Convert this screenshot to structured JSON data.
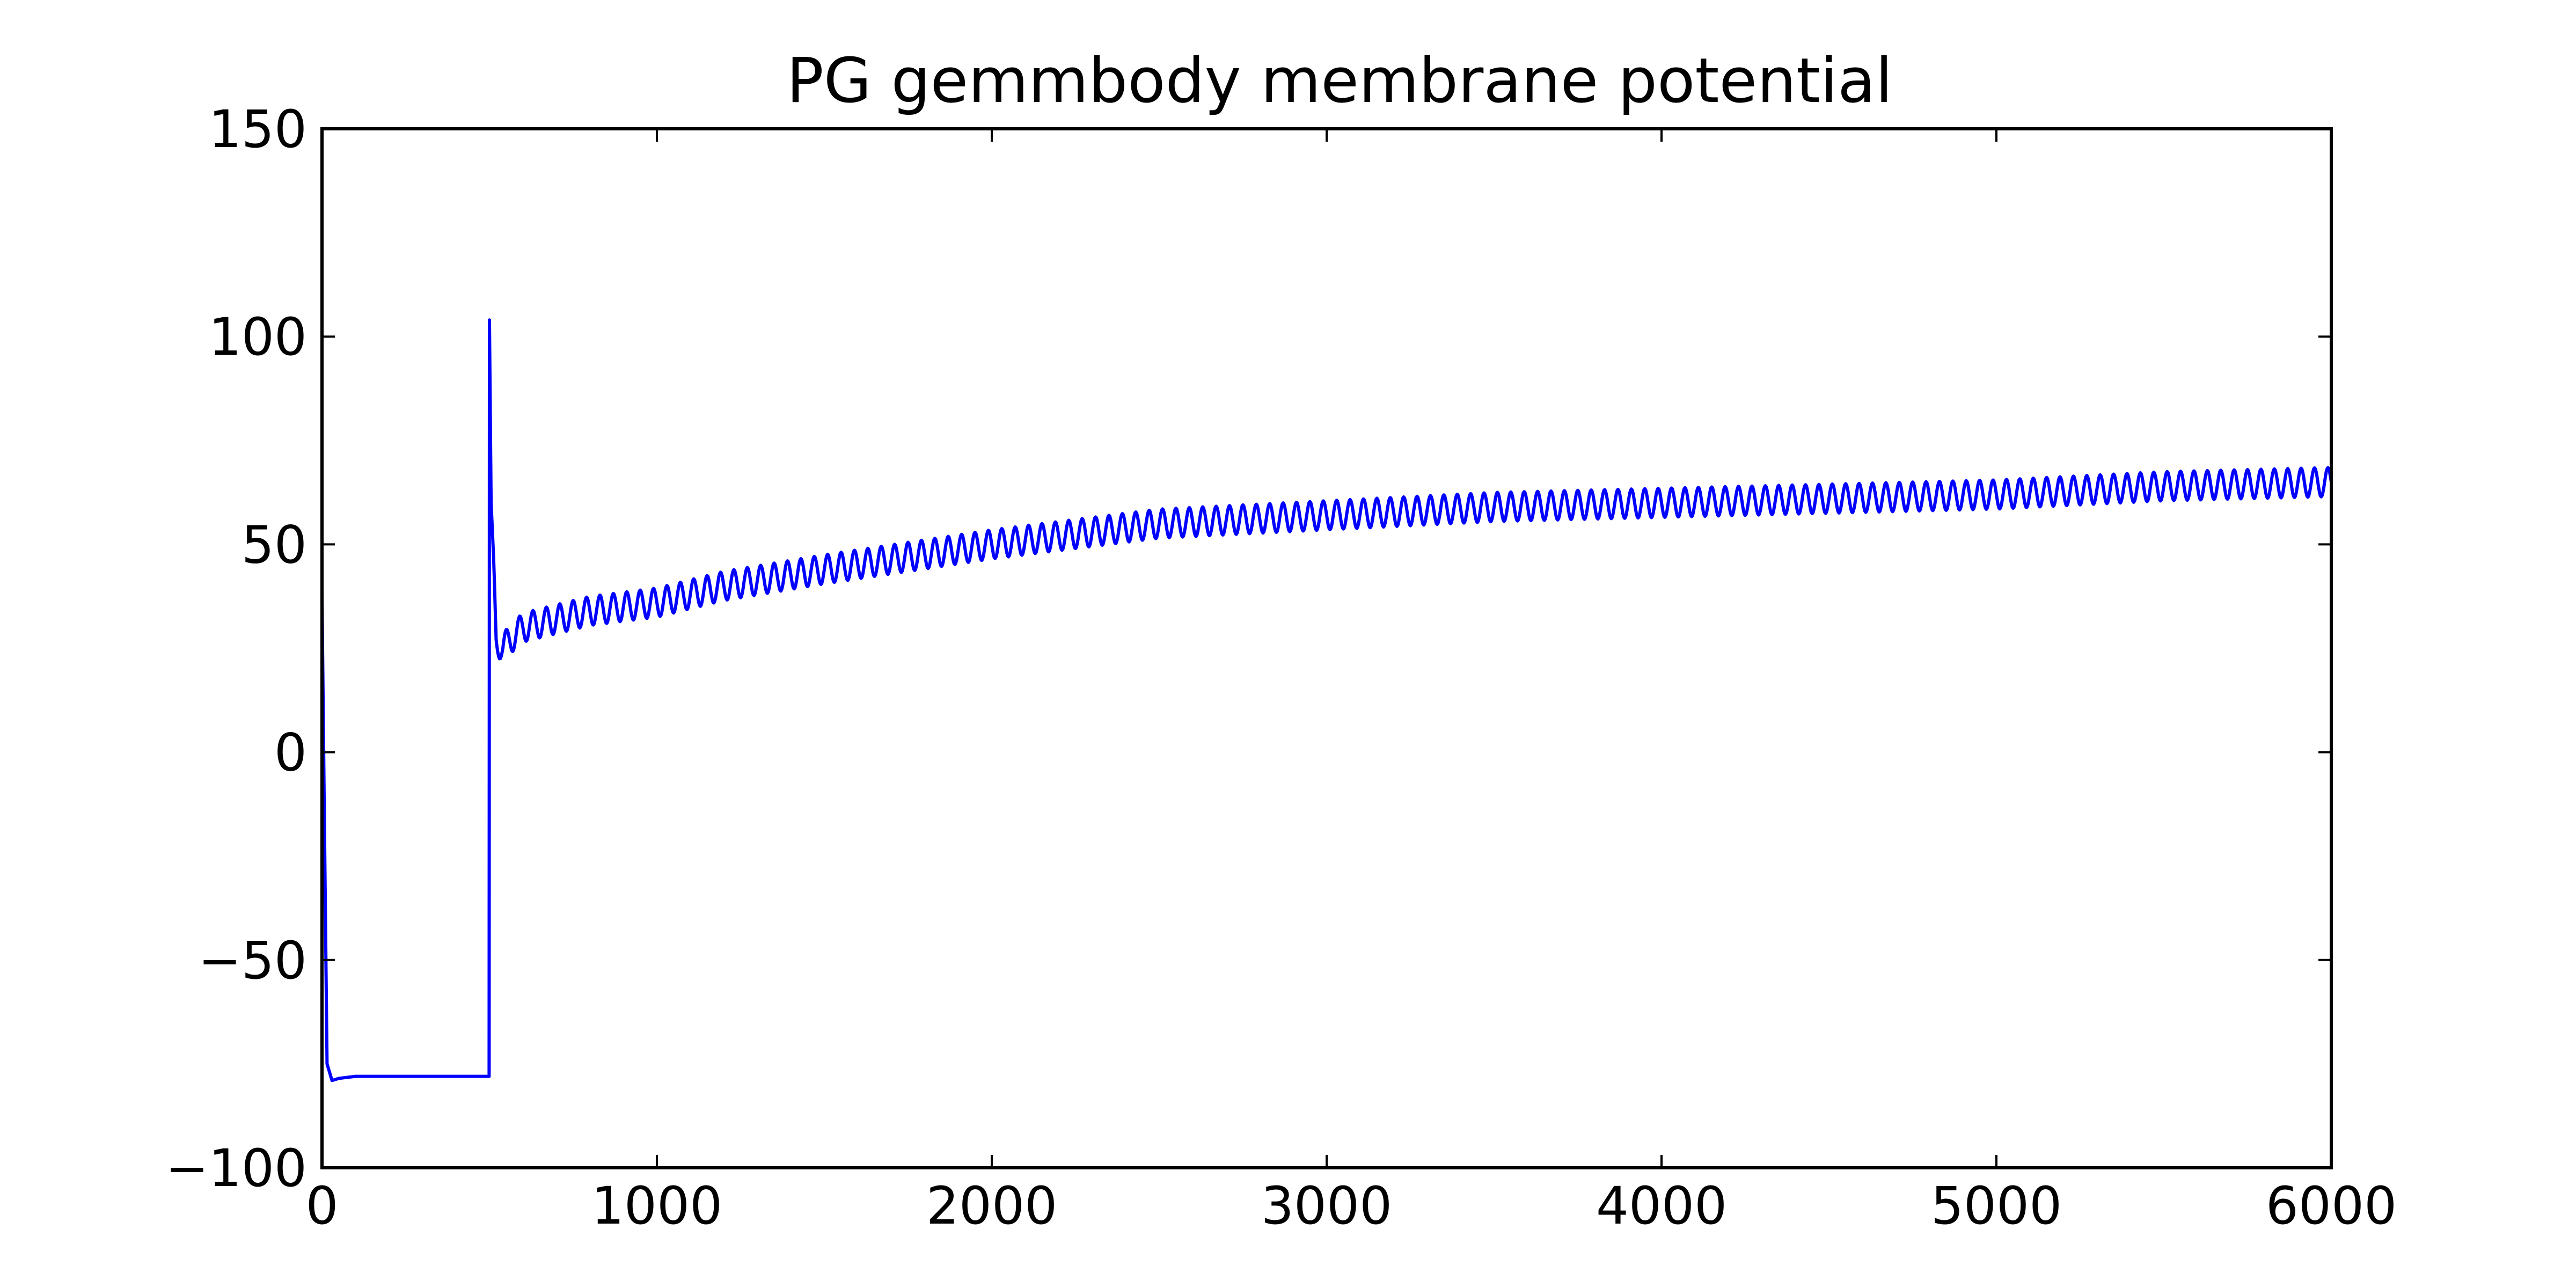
{
  "chart_data": {
    "type": "line",
    "title": "PG gemmbody membrane potential",
    "xlabel": "",
    "ylabel": "",
    "xlim": [
      0,
      6000
    ],
    "ylim": [
      -100,
      150
    ],
    "x_ticks": [
      0,
      1000,
      2000,
      3000,
      4000,
      5000,
      6000
    ],
    "x_tick_labels": [
      "0",
      "1000",
      "2000",
      "3000",
      "4000",
      "5000",
      "6000"
    ],
    "y_ticks": [
      -100,
      -50,
      0,
      50,
      100,
      150
    ],
    "y_tick_labels": [
      "−100",
      "−50",
      "0",
      "50",
      "100",
      "150"
    ],
    "grid": false,
    "legend": "none",
    "series": [
      {
        "color": "#0000ff",
        "x": [
          0,
          5,
          15,
          30,
          50,
          100,
          200,
          300,
          400,
          499,
          500,
          505,
          520,
          540,
          560,
          600,
          700,
          800,
          1000,
          1200,
          1500,
          2000,
          2500,
          3000,
          3500,
          4000,
          4500,
          5000,
          5500,
          6000
        ],
        "y": [
          38,
          0,
          -75,
          -79,
          -78.5,
          -78,
          -78,
          -78,
          -78,
          -78,
          104,
          60,
          27,
          25,
          27,
          30,
          32,
          34,
          36,
          40,
          44,
          50,
          55,
          57,
          59,
          60,
          61,
          62,
          64,
          65
        ],
        "oscillation": {
          "start_x": 500,
          "period": 40,
          "amplitude": [
            [
              500,
              3.5
            ],
            [
              6000,
              3.5
            ]
          ]
        }
      }
    ]
  }
}
